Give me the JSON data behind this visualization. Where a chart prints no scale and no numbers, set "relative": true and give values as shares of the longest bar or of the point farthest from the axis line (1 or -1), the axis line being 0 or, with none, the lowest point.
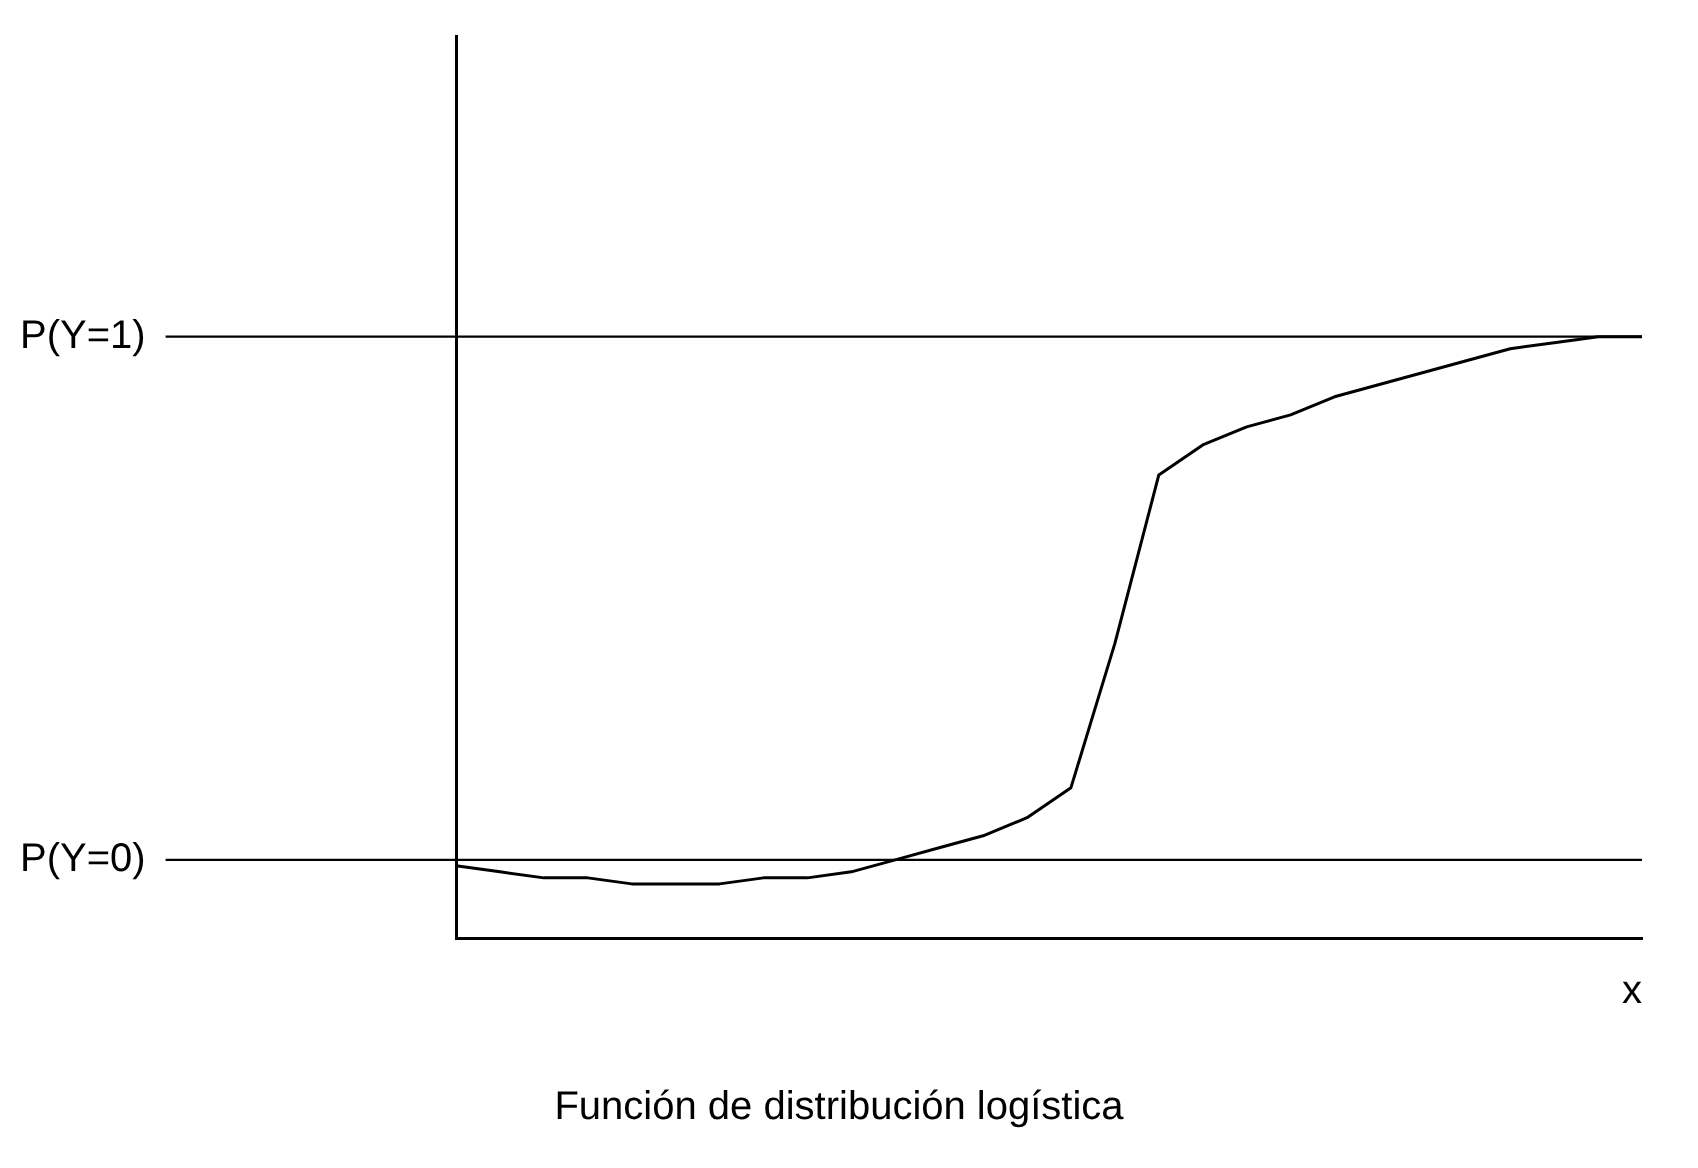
{
  "chart_data": {
    "type": "line",
    "title": "Función de distribución logística",
    "xlabel": "x",
    "relative": true,
    "categories": [
      null,
      null,
      null,
      null,
      null,
      null,
      null,
      null,
      null,
      null,
      null,
      null,
      null,
      null,
      null,
      null,
      null,
      null,
      null,
      null,
      null,
      null,
      null,
      null,
      null,
      null,
      null,
      null
    ],
    "series": [
      {
        "color": "#000000",
        "values": [
          0.12,
          0.11,
          0.1,
          0.1,
          0.09,
          0.09,
          0.09,
          0.1,
          0.1,
          0.11,
          0.13,
          0.15,
          0.17,
          0.2,
          0.25,
          0.49,
          0.77,
          0.82,
          0.85,
          0.87,
          0.9,
          0.92,
          0.94,
          0.96,
          0.98,
          0.99,
          1.0,
          1.0
        ]
      }
    ],
    "ref_lines": [
      {
        "axis": "y",
        "value": 1,
        "label": "P(Y=1)",
        "color": "#000000"
      },
      {
        "axis": "y",
        "value": 0.13,
        "label": "P(Y=0)",
        "color": "#000000"
      }
    ],
    "grid": false,
    "legend": false,
    "marker": "none",
    "line_style": "solid"
  }
}
